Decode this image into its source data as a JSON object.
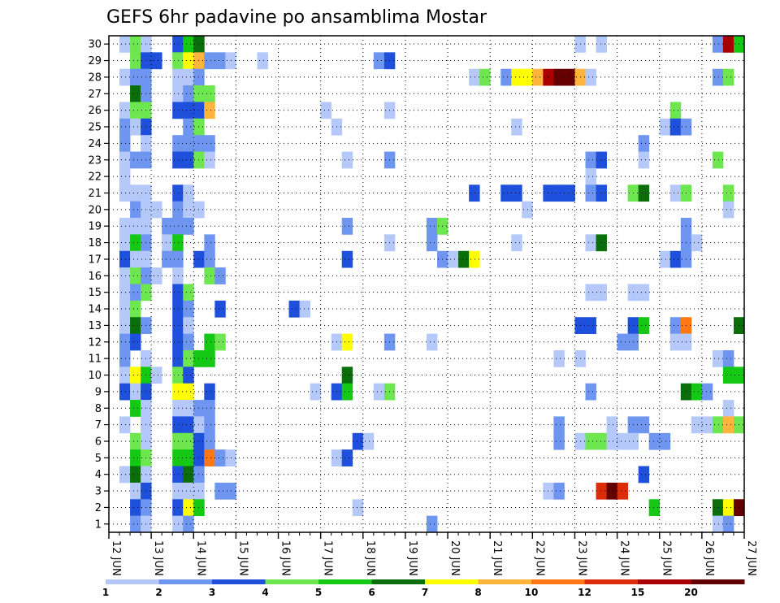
{
  "chart_data": {
    "type": "heatmap",
    "title": "GEFS 6hr padavine po ansamblima Mostar",
    "xlabel": "",
    "ylabel": "",
    "x_ticks": [
      "12 JUN",
      "13 JUN",
      "14 JUN",
      "15 JUN",
      "16 JUN",
      "17 JUN",
      "18 JUN",
      "19 JUN",
      "20 JUN",
      "21 JUN",
      "22 JUN",
      "23 JUN",
      "24 JUN",
      "25 JUN",
      "26 JUN",
      "27 JUN"
    ],
    "y_ticks": [
      1,
      2,
      3,
      4,
      5,
      6,
      7,
      8,
      9,
      10,
      11,
      12,
      13,
      14,
      15,
      16,
      17,
      18,
      19,
      20,
      21,
      22,
      23,
      24,
      25,
      26,
      27,
      28,
      29,
      30
    ],
    "time_steps": 60,
    "members": 30,
    "grid": true,
    "colorbar": {
      "position": "bottom",
      "levels": [
        "1",
        "2",
        "3",
        "4",
        "5",
        "6",
        "7",
        "8",
        "10",
        "12",
        "15",
        "20"
      ],
      "colors": [
        "#b4c8fa",
        "#6e96f0",
        "#1e50dc",
        "#6ee650",
        "#14c814",
        "#0a6e0a",
        "#ffff00",
        "#ffb43c",
        "#ff7814",
        "#dc2d0a",
        "#aa0000",
        "#640000"
      ]
    },
    "cells": [
      [
        30,
        1,
        0
      ],
      [
        30,
        2,
        3
      ],
      [
        30,
        3,
        0
      ],
      [
        30,
        6,
        2
      ],
      [
        30,
        7,
        4
      ],
      [
        30,
        8,
        5
      ],
      [
        30,
        44,
        0
      ],
      [
        30,
        46,
        0
      ],
      [
        30,
        57,
        1
      ],
      [
        30,
        58,
        10
      ],
      [
        30,
        59,
        4
      ],
      [
        29,
        2,
        3
      ],
      [
        29,
        3,
        2
      ],
      [
        29,
        4,
        2
      ],
      [
        29,
        6,
        3
      ],
      [
        29,
        7,
        6
      ],
      [
        29,
        8,
        7
      ],
      [
        29,
        9,
        1
      ],
      [
        29,
        10,
        1
      ],
      [
        29,
        11,
        0
      ],
      [
        29,
        14,
        0
      ],
      [
        29,
        25,
        1
      ],
      [
        29,
        26,
        2
      ],
      [
        28,
        1,
        0
      ],
      [
        28,
        2,
        1
      ],
      [
        28,
        3,
        1
      ],
      [
        28,
        6,
        0
      ],
      [
        28,
        7,
        0
      ],
      [
        28,
        8,
        1
      ],
      [
        28,
        34,
        0
      ],
      [
        28,
        35,
        3
      ],
      [
        28,
        37,
        1
      ],
      [
        28,
        38,
        6
      ],
      [
        28,
        39,
        6
      ],
      [
        28,
        40,
        7
      ],
      [
        28,
        41,
        10
      ],
      [
        28,
        42,
        11
      ],
      [
        28,
        43,
        11
      ],
      [
        28,
        44,
        7
      ],
      [
        28,
        45,
        0
      ],
      [
        28,
        57,
        1
      ],
      [
        28,
        58,
        3
      ],
      [
        27,
        2,
        5
      ],
      [
        27,
        3,
        1
      ],
      [
        27,
        6,
        0
      ],
      [
        27,
        7,
        1
      ],
      [
        27,
        8,
        3
      ],
      [
        27,
        9,
        3
      ],
      [
        26,
        1,
        0
      ],
      [
        26,
        2,
        3
      ],
      [
        26,
        3,
        3
      ],
      [
        26,
        6,
        2
      ],
      [
        26,
        7,
        2
      ],
      [
        26,
        8,
        2
      ],
      [
        26,
        9,
        7
      ],
      [
        26,
        20,
        0
      ],
      [
        26,
        26,
        0
      ],
      [
        26,
        53,
        3
      ],
      [
        25,
        1,
        1
      ],
      [
        25,
        2,
        0
      ],
      [
        25,
        3,
        2
      ],
      [
        25,
        7,
        1
      ],
      [
        25,
        8,
        3
      ],
      [
        25,
        21,
        0
      ],
      [
        25,
        38,
        0
      ],
      [
        25,
        52,
        0
      ],
      [
        25,
        53,
        2
      ],
      [
        25,
        54,
        1
      ],
      [
        24,
        1,
        1
      ],
      [
        24,
        3,
        0
      ],
      [
        24,
        6,
        1
      ],
      [
        24,
        7,
        1
      ],
      [
        24,
        8,
        1
      ],
      [
        24,
        9,
        1
      ],
      [
        24,
        50,
        1
      ],
      [
        23,
        1,
        0
      ],
      [
        23,
        2,
        1
      ],
      [
        23,
        3,
        1
      ],
      [
        23,
        6,
        2
      ],
      [
        23,
        7,
        2
      ],
      [
        23,
        8,
        3
      ],
      [
        23,
        9,
        0
      ],
      [
        23,
        22,
        0
      ],
      [
        23,
        26,
        1
      ],
      [
        23,
        45,
        1
      ],
      [
        23,
        46,
        2
      ],
      [
        23,
        50,
        0
      ],
      [
        23,
        57,
        3
      ],
      [
        22,
        1,
        0
      ],
      [
        22,
        45,
        0
      ],
      [
        21,
        1,
        0
      ],
      [
        21,
        2,
        0
      ],
      [
        21,
        3,
        0
      ],
      [
        21,
        6,
        2
      ],
      [
        21,
        7,
        0
      ],
      [
        21,
        34,
        2
      ],
      [
        21,
        37,
        2
      ],
      [
        21,
        38,
        2
      ],
      [
        21,
        41,
        2
      ],
      [
        21,
        42,
        2
      ],
      [
        21,
        43,
        2
      ],
      [
        21,
        45,
        1
      ],
      [
        21,
        46,
        2
      ],
      [
        21,
        49,
        3
      ],
      [
        21,
        50,
        5
      ],
      [
        21,
        53,
        0
      ],
      [
        21,
        54,
        3
      ],
      [
        21,
        58,
        3
      ],
      [
        20,
        2,
        1
      ],
      [
        20,
        3,
        0
      ],
      [
        20,
        4,
        0
      ],
      [
        20,
        6,
        1
      ],
      [
        20,
        7,
        0
      ],
      [
        20,
        8,
        0
      ],
      [
        20,
        39,
        0
      ],
      [
        20,
        58,
        0
      ],
      [
        19,
        1,
        0
      ],
      [
        19,
        2,
        0
      ],
      [
        19,
        3,
        0
      ],
      [
        19,
        5,
        1
      ],
      [
        19,
        6,
        1
      ],
      [
        19,
        7,
        1
      ],
      [
        19,
        22,
        1
      ],
      [
        19,
        30,
        1
      ],
      [
        19,
        31,
        3
      ],
      [
        19,
        54,
        1
      ],
      [
        18,
        1,
        0
      ],
      [
        18,
        2,
        4
      ],
      [
        18,
        3,
        1
      ],
      [
        18,
        5,
        0
      ],
      [
        18,
        6,
        4
      ],
      [
        18,
        9,
        1
      ],
      [
        18,
        26,
        0
      ],
      [
        18,
        30,
        1
      ],
      [
        18,
        38,
        0
      ],
      [
        18,
        45,
        0
      ],
      [
        18,
        46,
        5
      ],
      [
        18,
        54,
        1
      ],
      [
        18,
        55,
        0
      ],
      [
        17,
        1,
        2
      ],
      [
        17,
        2,
        0
      ],
      [
        17,
        3,
        0
      ],
      [
        17,
        5,
        1
      ],
      [
        17,
        6,
        1
      ],
      [
        17,
        8,
        2
      ],
      [
        17,
        9,
        1
      ],
      [
        17,
        22,
        2
      ],
      [
        17,
        31,
        1
      ],
      [
        17,
        32,
        0
      ],
      [
        17,
        33,
        5
      ],
      [
        17,
        34,
        6
      ],
      [
        17,
        52,
        0
      ],
      [
        17,
        53,
        2
      ],
      [
        17,
        54,
        1
      ],
      [
        16,
        1,
        0
      ],
      [
        16,
        2,
        3
      ],
      [
        16,
        3,
        1
      ],
      [
        16,
        4,
        0
      ],
      [
        16,
        6,
        0
      ],
      [
        16,
        9,
        3
      ],
      [
        16,
        10,
        1
      ],
      [
        15,
        1,
        0
      ],
      [
        15,
        2,
        1
      ],
      [
        15,
        3,
        3
      ],
      [
        15,
        6,
        2
      ],
      [
        15,
        7,
        3
      ],
      [
        15,
        45,
        0
      ],
      [
        15,
        46,
        0
      ],
      [
        15,
        49,
        0
      ],
      [
        15,
        50,
        0
      ],
      [
        14,
        1,
        0
      ],
      [
        14,
        2,
        3
      ],
      [
        14,
        6,
        2
      ],
      [
        14,
        7,
        1
      ],
      [
        14,
        10,
        2
      ],
      [
        14,
        17,
        2
      ],
      [
        14,
        18,
        0
      ],
      [
        13,
        1,
        0
      ],
      [
        13,
        2,
        5
      ],
      [
        13,
        3,
        1
      ],
      [
        13,
        6,
        2
      ],
      [
        13,
        7,
        0
      ],
      [
        13,
        44,
        2
      ],
      [
        13,
        45,
        2
      ],
      [
        13,
        49,
        2
      ],
      [
        13,
        50,
        4
      ],
      [
        13,
        53,
        1
      ],
      [
        13,
        54,
        8
      ],
      [
        13,
        59,
        5
      ],
      [
        12,
        1,
        1
      ],
      [
        12,
        2,
        2
      ],
      [
        12,
        6,
        2
      ],
      [
        12,
        7,
        1
      ],
      [
        12,
        9,
        4
      ],
      [
        12,
        10,
        3
      ],
      [
        12,
        21,
        0
      ],
      [
        12,
        22,
        6
      ],
      [
        12,
        26,
        1
      ],
      [
        12,
        30,
        0
      ],
      [
        12,
        48,
        1
      ],
      [
        12,
        49,
        1
      ],
      [
        12,
        53,
        0
      ],
      [
        12,
        54,
        0
      ],
      [
        11,
        1,
        1
      ],
      [
        11,
        3,
        0
      ],
      [
        11,
        6,
        2
      ],
      [
        11,
        7,
        3
      ],
      [
        11,
        8,
        4
      ],
      [
        11,
        9,
        4
      ],
      [
        11,
        42,
        0
      ],
      [
        11,
        44,
        0
      ],
      [
        11,
        57,
        0
      ],
      [
        11,
        58,
        1
      ],
      [
        10,
        1,
        0
      ],
      [
        10,
        2,
        6
      ],
      [
        10,
        3,
        4
      ],
      [
        10,
        4,
        0
      ],
      [
        10,
        6,
        3
      ],
      [
        10,
        7,
        2
      ],
      [
        10,
        22,
        5
      ],
      [
        10,
        58,
        4
      ],
      [
        10,
        59,
        4
      ],
      [
        9,
        1,
        2
      ],
      [
        9,
        2,
        0
      ],
      [
        9,
        3,
        2
      ],
      [
        9,
        6,
        6
      ],
      [
        9,
        7,
        6
      ],
      [
        9,
        9,
        2
      ],
      [
        9,
        19,
        0
      ],
      [
        9,
        21,
        2
      ],
      [
        9,
        22,
        4
      ],
      [
        9,
        25,
        0
      ],
      [
        9,
        26,
        3
      ],
      [
        9,
        45,
        1
      ],
      [
        9,
        54,
        5
      ],
      [
        9,
        55,
        4
      ],
      [
        9,
        56,
        1
      ],
      [
        8,
        2,
        4
      ],
      [
        8,
        3,
        0
      ],
      [
        8,
        6,
        0
      ],
      [
        8,
        7,
        0
      ],
      [
        8,
        8,
        1
      ],
      [
        8,
        9,
        1
      ],
      [
        8,
        58,
        0
      ],
      [
        7,
        1,
        0
      ],
      [
        7,
        3,
        0
      ],
      [
        7,
        6,
        2
      ],
      [
        7,
        7,
        2
      ],
      [
        7,
        8,
        0
      ],
      [
        7,
        9,
        1
      ],
      [
        7,
        42,
        1
      ],
      [
        7,
        47,
        0
      ],
      [
        7,
        49,
        1
      ],
      [
        7,
        50,
        1
      ],
      [
        7,
        55,
        0
      ],
      [
        7,
        56,
        0
      ],
      [
        7,
        57,
        3
      ],
      [
        7,
        58,
        7
      ],
      [
        7,
        59,
        3
      ],
      [
        6,
        2,
        3
      ],
      [
        6,
        3,
        0
      ],
      [
        6,
        6,
        3
      ],
      [
        6,
        7,
        3
      ],
      [
        6,
        8,
        2
      ],
      [
        6,
        9,
        1
      ],
      [
        6,
        23,
        2
      ],
      [
        6,
        24,
        0
      ],
      [
        6,
        42,
        1
      ],
      [
        6,
        44,
        0
      ],
      [
        6,
        45,
        3
      ],
      [
        6,
        46,
        3
      ],
      [
        6,
        47,
        0
      ],
      [
        6,
        48,
        0
      ],
      [
        6,
        49,
        0
      ],
      [
        6,
        51,
        1
      ],
      [
        6,
        52,
        1
      ],
      [
        5,
        2,
        4
      ],
      [
        5,
        3,
        3
      ],
      [
        5,
        6,
        4
      ],
      [
        5,
        7,
        4
      ],
      [
        5,
        8,
        2
      ],
      [
        5,
        9,
        8
      ],
      [
        5,
        10,
        1
      ],
      [
        5,
        11,
        0
      ],
      [
        5,
        21,
        0
      ],
      [
        5,
        22,
        2
      ],
      [
        4,
        1,
        0
      ],
      [
        4,
        2,
        5
      ],
      [
        4,
        3,
        0
      ],
      [
        4,
        6,
        2
      ],
      [
        4,
        7,
        5
      ],
      [
        4,
        8,
        1
      ],
      [
        4,
        50,
        2
      ],
      [
        3,
        2,
        0
      ],
      [
        3,
        3,
        2
      ],
      [
        3,
        6,
        0
      ],
      [
        3,
        7,
        0
      ],
      [
        3,
        8,
        0
      ],
      [
        3,
        10,
        1
      ],
      [
        3,
        11,
        1
      ],
      [
        3,
        41,
        0
      ],
      [
        3,
        42,
        1
      ],
      [
        3,
        46,
        9
      ],
      [
        3,
        47,
        11
      ],
      [
        3,
        48,
        9
      ],
      [
        2,
        2,
        2
      ],
      [
        2,
        3,
        1
      ],
      [
        2,
        6,
        2
      ],
      [
        2,
        7,
        6
      ],
      [
        2,
        8,
        4
      ],
      [
        2,
        23,
        0
      ],
      [
        2,
        51,
        4
      ],
      [
        2,
        57,
        5
      ],
      [
        2,
        58,
        6
      ],
      [
        2,
        59,
        11
      ],
      [
        1,
        2,
        1
      ],
      [
        1,
        3,
        0
      ],
      [
        1,
        6,
        0
      ],
      [
        1,
        7,
        1
      ],
      [
        1,
        30,
        1
      ],
      [
        1,
        57,
        0
      ],
      [
        1,
        58,
        1
      ]
    ]
  }
}
